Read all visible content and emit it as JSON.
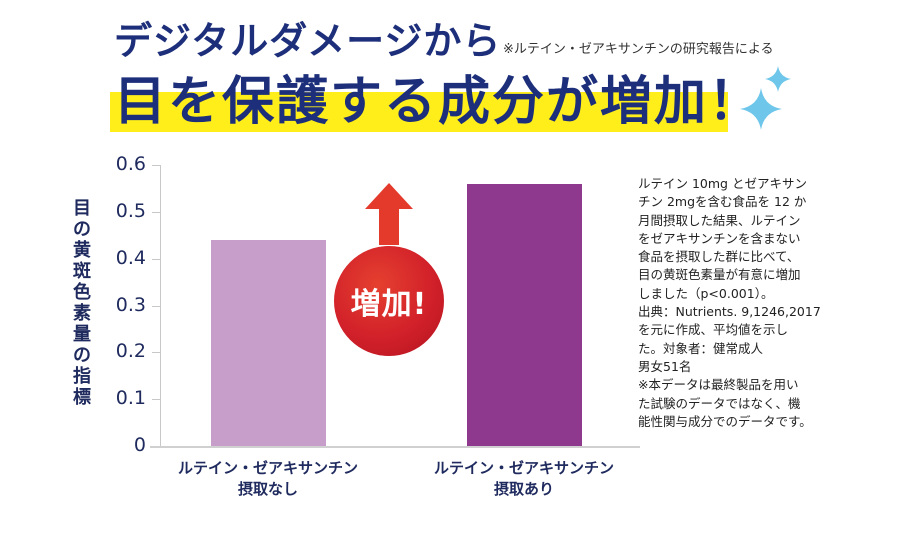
{
  "header": {
    "title_line1": "デジタルダメージから",
    "note": "※ルテイン・ゼアキサンチンの研究報告による",
    "title_line2": "目を保護する成分が増加！",
    "highlight_color": "#ffee1a",
    "title_color": "#1d2f7a",
    "sparkle_color": "#6ec6ea"
  },
  "badge": {
    "label": "増加!",
    "color": "#d2212a",
    "arrow_color": "#e33a2c"
  },
  "chart_data": {
    "type": "bar",
    "title": "",
    "xlabel": "",
    "ylabel": "目の黄斑色素量の指標",
    "categories": [
      "ルテイン・ゼアキサンチン 摂取なし",
      "ルテイン・ゼアキサンチン 摂取あり"
    ],
    "values": [
      0.44,
      0.56
    ],
    "colors": [
      "#c79dc9",
      "#8e388e"
    ],
    "ylim": [
      0,
      0.6
    ],
    "yticks": [
      "0.6",
      "0.5",
      "0.4",
      "0.3",
      "0.2",
      "0.1",
      "0"
    ],
    "grid": false,
    "legend": null,
    "annotations": [
      "増加!"
    ]
  },
  "axis": {
    "ylabel": "目の黄斑色素量の指標",
    "yticks": [
      "0.6",
      "0.5",
      "0.4",
      "0.3",
      "0.2",
      "0.1",
      "0"
    ]
  },
  "bars": [
    {
      "label_line1": "ルテイン・ゼアキサンチン",
      "label_line2": "摂取なし"
    },
    {
      "label_line1": "ルテイン・ゼアキサンチン",
      "label_line2": "摂取あり"
    }
  ],
  "side_text": {
    "lines": [
      "ルテイン 10mg とゼアキサン",
      "チン 2mgを含む食品を 12 か",
      "月間摂取した結果、ルテイン",
      "をゼアキサンチンを含まない",
      "食品を摂取した群に比べて、",
      "目の黄斑色素量が有意に増加",
      "しました（p<0.001）。",
      "出典：Nutrients. 9,1246,2017",
      "を元に作成、平均値を示し",
      "た。対象者：健常成人",
      "男女51名",
      "※本データは最終製品を用い",
      "た試験のデータではなく、機",
      "能性関与成分でのデータです。"
    ]
  }
}
